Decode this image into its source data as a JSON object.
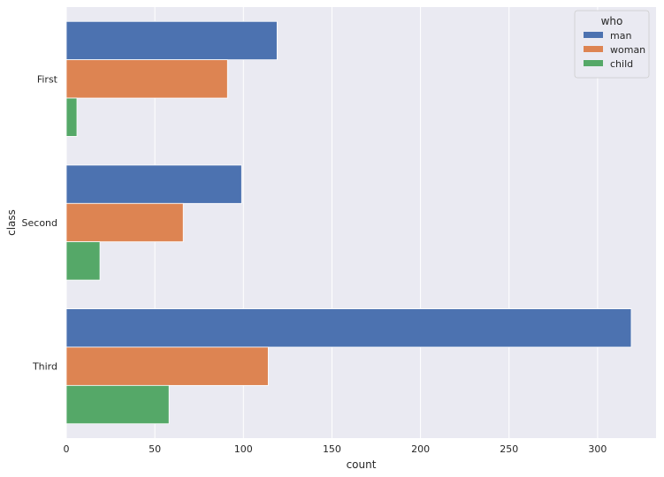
{
  "chart_data": {
    "type": "bar",
    "orientation": "horizontal",
    "categories": [
      "First",
      "Second",
      "Third"
    ],
    "series": [
      {
        "name": "man",
        "color": "#4c72b0",
        "values": [
          119,
          99,
          319
        ]
      },
      {
        "name": "woman",
        "color": "#dd8452",
        "values": [
          91,
          66,
          114
        ]
      },
      {
        "name": "child",
        "color": "#55a868",
        "values": [
          6,
          19,
          58
        ]
      }
    ],
    "xlabel": "count",
    "ylabel": "class",
    "xlim": [
      0,
      333
    ],
    "xticks": [
      "0",
      "50",
      "100",
      "150",
      "200",
      "250",
      "300"
    ],
    "grid": true,
    "legend": {
      "title": "who",
      "placement": "top-right"
    },
    "background": "#eaeaf2"
  }
}
